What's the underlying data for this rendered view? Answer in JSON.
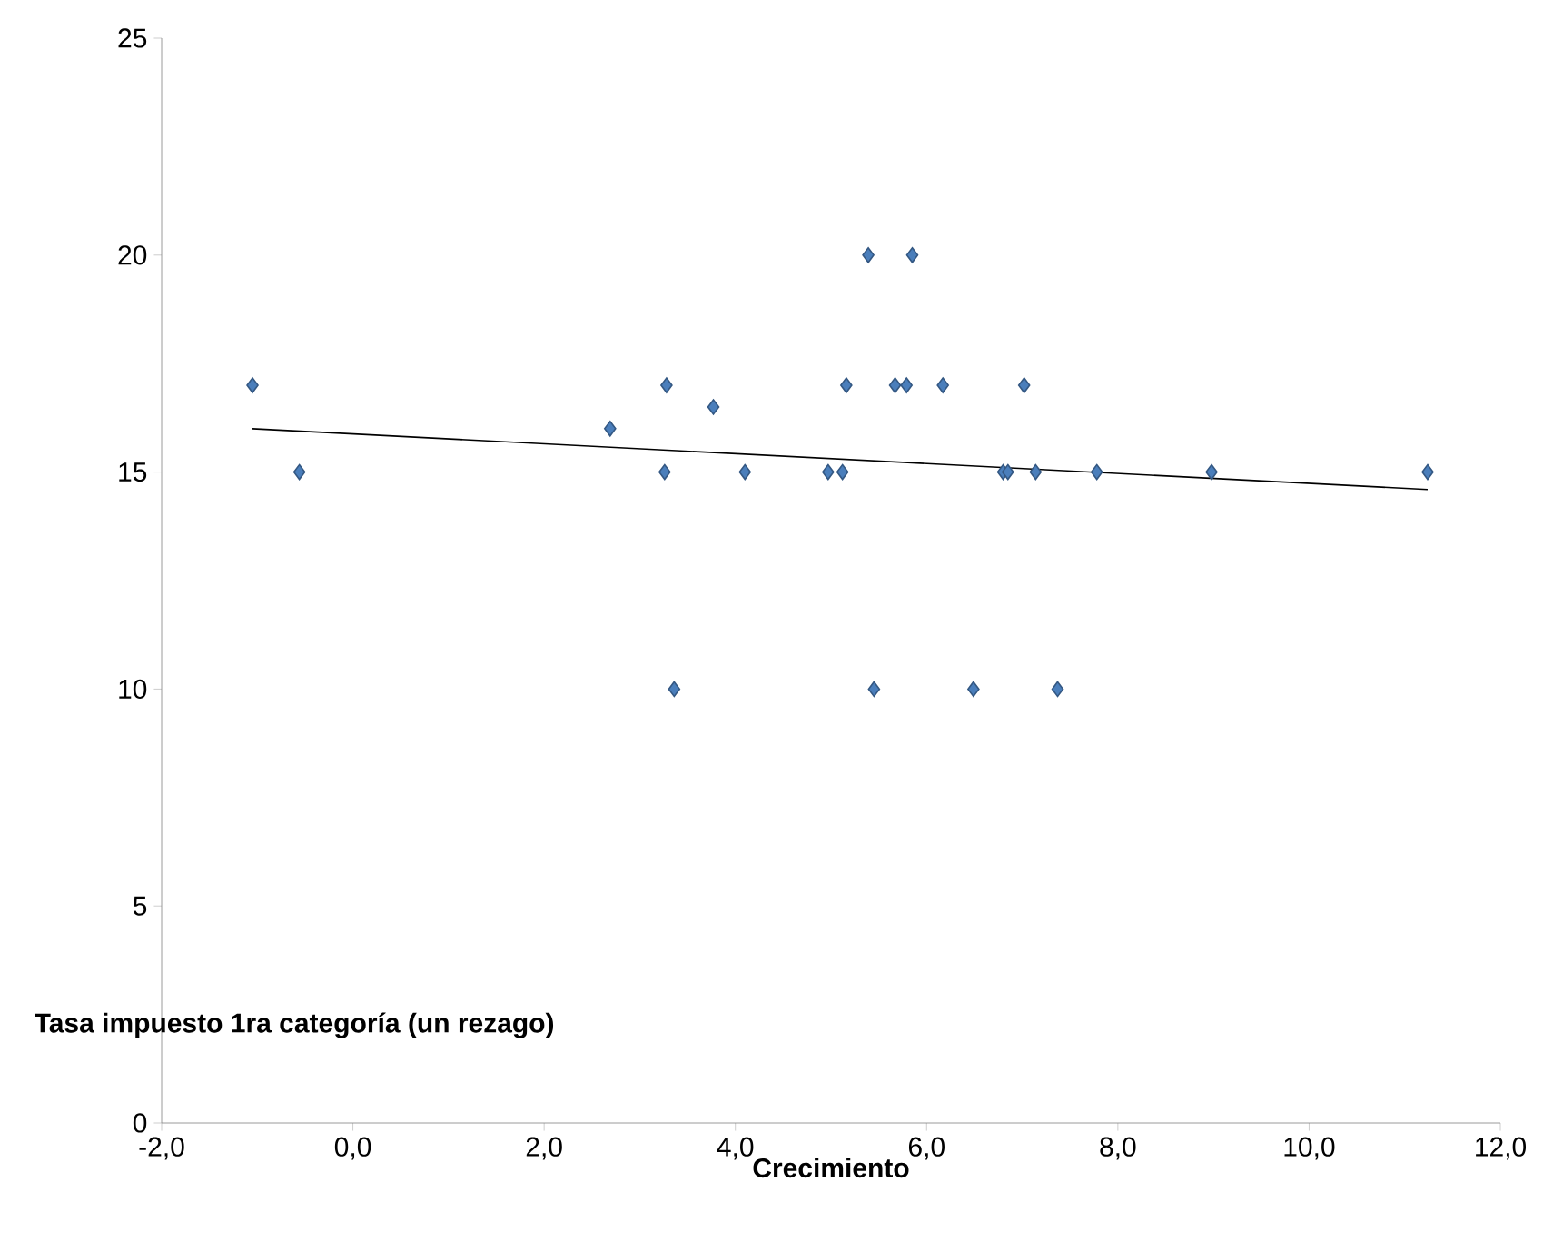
{
  "chart_data": {
    "type": "scatter",
    "xlabel": "Crecimiento",
    "ylabel": "Tasa impuesto 1ra categoría (un rezago)",
    "marker": "diamond",
    "grid": false,
    "xlim": [
      -2,
      12
    ],
    "ylim": [
      0,
      25
    ],
    "xticks": [
      {
        "value": -2,
        "label": "-2,0"
      },
      {
        "value": 0,
        "label": "0,0"
      },
      {
        "value": 2,
        "label": "2,0"
      },
      {
        "value": 4,
        "label": "4,0"
      },
      {
        "value": 6,
        "label": "6,0"
      },
      {
        "value": 8,
        "label": "8,0"
      },
      {
        "value": 10,
        "label": "10,0"
      },
      {
        "value": 12,
        "label": "12,0"
      }
    ],
    "yticks": [
      0,
      5,
      10,
      15,
      20,
      25
    ],
    "series": [
      {
        "color": "#4a7ebb",
        "x": [
          -1.05,
          -0.56,
          2.69,
          3.28,
          3.26,
          3.36,
          3.77,
          4.1,
          4.97,
          5.12,
          5.16,
          5.39,
          5.45,
          5.67,
          5.79,
          5.85,
          6.17,
          6.49,
          6.8,
          6.85,
          7.02,
          7.14,
          7.37,
          7.78,
          8.98,
          11.24
        ],
        "values": [
          17,
          15,
          16,
          17,
          15,
          10,
          16.5,
          15,
          15,
          15,
          17,
          20,
          10,
          17,
          17,
          20,
          17,
          10,
          15,
          15,
          17,
          15,
          10,
          15,
          15,
          15
        ]
      },
      {
        "type": "line",
        "color": "#000000",
        "marker": "none",
        "x": [
          -1.05,
          11.24
        ],
        "values": [
          16.0,
          14.6
        ]
      }
    ]
  }
}
